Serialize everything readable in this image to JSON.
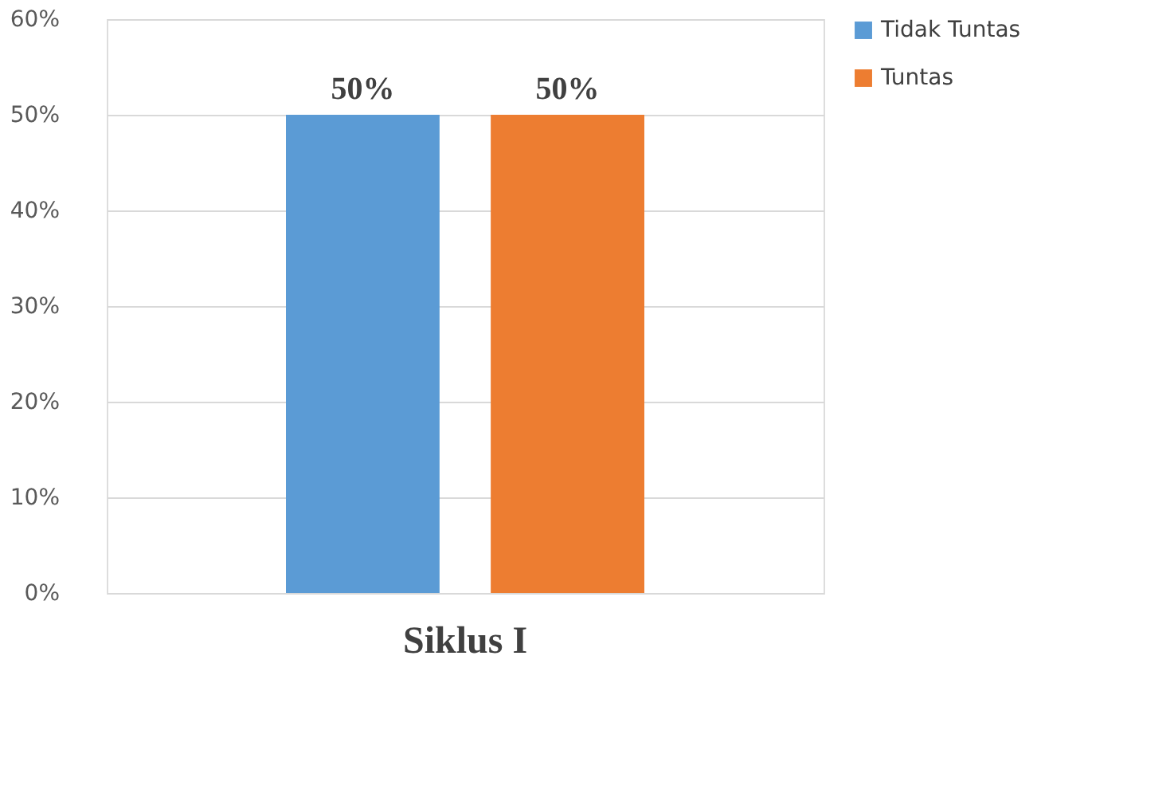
{
  "chart_data": {
    "type": "bar",
    "categories": [
      "Siklus I"
    ],
    "series": [
      {
        "name": "Tidak Tuntas",
        "color": "#5b9bd5",
        "values": [
          50
        ]
      },
      {
        "name": "Tuntas",
        "color": "#ed7d31",
        "values": [
          50
        ]
      }
    ],
    "ylim": [
      0,
      60
    ],
    "yticks": [
      {
        "value": 0,
        "label": "0%"
      },
      {
        "value": 10,
        "label": "10%"
      },
      {
        "value": 20,
        "label": "20%"
      },
      {
        "value": 30,
        "label": "30%"
      },
      {
        "value": 40,
        "label": "40%"
      },
      {
        "value": 50,
        "label": "50%"
      },
      {
        "value": 60,
        "label": "60%"
      }
    ],
    "value_labels": [
      "50%",
      "50%"
    ],
    "grid": "y",
    "legend": "right"
  }
}
